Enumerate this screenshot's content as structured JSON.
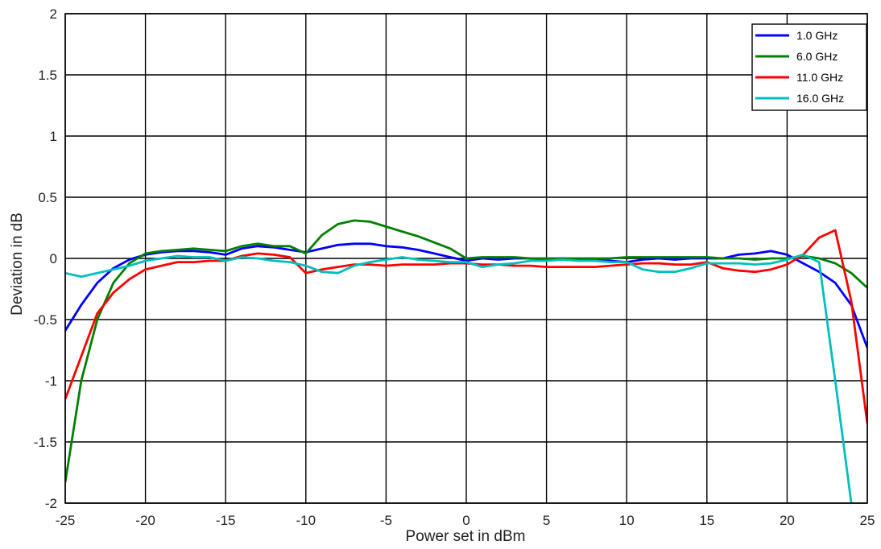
{
  "chart_data": {
    "type": "line",
    "title": "",
    "xlabel": "Power set in dBm",
    "ylabel": "Deviation  in dB",
    "xlim": [
      -25,
      25
    ],
    "ylim": [
      -2,
      2
    ],
    "xticks": [
      -25,
      -20,
      -15,
      -10,
      -5,
      0,
      5,
      10,
      15,
      20,
      25
    ],
    "yticks": [
      2,
      1.5,
      1,
      0.5,
      0,
      -0.5,
      -1,
      -1.5,
      -2
    ],
    "ytick_labels": [
      "2",
      "1.5",
      "1",
      "0.5",
      "0",
      "-0.5",
      "-1",
      "-1.5",
      "-2"
    ],
    "grid": true,
    "legend_position": "top-right",
    "series": [
      {
        "name": "1.0 GHz",
        "color": "#0000ff",
        "x": [
          -25,
          -24,
          -23,
          -22,
          -21,
          -20,
          -19,
          -18,
          -17,
          -16,
          -15,
          -14,
          -13,
          -12,
          -11,
          -10,
          -9,
          -8,
          -7,
          -6,
          -5,
          -4,
          -3,
          -2,
          -1,
          0,
          1,
          2,
          3,
          4,
          5,
          6,
          7,
          8,
          9,
          10,
          11,
          12,
          13,
          14,
          15,
          16,
          17,
          18,
          19,
          20,
          21,
          22,
          23,
          24,
          25
        ],
        "y": [
          -0.59,
          -0.38,
          -0.2,
          -0.08,
          -0.01,
          0.03,
          0.05,
          0.06,
          0.06,
          0.05,
          0.03,
          0.08,
          0.1,
          0.09,
          0.07,
          0.05,
          0.08,
          0.11,
          0.12,
          0.12,
          0.1,
          0.09,
          0.07,
          0.04,
          0.01,
          -0.02,
          0.0,
          -0.01,
          0.0,
          0.0,
          -0.01,
          0.0,
          -0.01,
          -0.01,
          -0.02,
          -0.03,
          -0.01,
          0.0,
          -0.01,
          0.0,
          0.0,
          0.0,
          0.03,
          0.04,
          0.06,
          0.03,
          -0.04,
          -0.11,
          -0.2,
          -0.38,
          -0.73
        ]
      },
      {
        "name": "6.0 GHz",
        "color": "#008000",
        "x": [
          -25,
          -24,
          -23,
          -22,
          -21,
          -20,
          -19,
          -18,
          -17,
          -16,
          -15,
          -14,
          -13,
          -12,
          -11,
          -10,
          -9,
          -8,
          -7,
          -6,
          -5,
          -4,
          -3,
          -2,
          -1,
          0,
          1,
          2,
          3,
          4,
          5,
          6,
          7,
          8,
          9,
          10,
          11,
          12,
          13,
          14,
          15,
          16,
          17,
          18,
          19,
          20,
          21,
          22,
          23,
          24,
          25
        ],
        "y": [
          -1.83,
          -1.0,
          -0.5,
          -0.2,
          -0.04,
          0.04,
          0.06,
          0.07,
          0.08,
          0.07,
          0.06,
          0.1,
          0.12,
          0.1,
          0.1,
          0.04,
          0.19,
          0.28,
          0.31,
          0.3,
          0.26,
          0.22,
          0.18,
          0.13,
          0.08,
          0.0,
          0.01,
          0.01,
          0.01,
          0.0,
          0.0,
          0.0,
          0.0,
          0.0,
          0.0,
          0.01,
          0.01,
          0.01,
          0.01,
          0.01,
          0.01,
          0.0,
          0.0,
          -0.01,
          0.0,
          0.0,
          0.02,
          0.0,
          -0.04,
          -0.12,
          -0.24
        ]
      },
      {
        "name": "11.0 GHz",
        "color": "#ff0000",
        "x": [
          -25,
          -24,
          -23,
          -22,
          -21,
          -20,
          -19,
          -18,
          -17,
          -16,
          -15,
          -14,
          -13,
          -12,
          -11,
          -10,
          -9,
          -8,
          -7,
          -6,
          -5,
          -4,
          -3,
          -2,
          -1,
          0,
          1,
          2,
          3,
          4,
          5,
          6,
          7,
          8,
          9,
          10,
          11,
          12,
          13,
          14,
          15,
          16,
          17,
          18,
          19,
          20,
          21,
          22,
          23,
          24,
          25
        ],
        "y": [
          -1.15,
          -0.8,
          -0.45,
          -0.28,
          -0.17,
          -0.09,
          -0.06,
          -0.03,
          -0.03,
          -0.02,
          -0.02,
          0.02,
          0.04,
          0.03,
          0.01,
          -0.12,
          -0.09,
          -0.07,
          -0.05,
          -0.05,
          -0.06,
          -0.05,
          -0.05,
          -0.05,
          -0.04,
          -0.04,
          -0.05,
          -0.05,
          -0.06,
          -0.06,
          -0.07,
          -0.07,
          -0.07,
          -0.07,
          -0.06,
          -0.05,
          -0.04,
          -0.04,
          -0.05,
          -0.05,
          -0.03,
          -0.08,
          -0.1,
          -0.11,
          -0.09,
          -0.05,
          0.03,
          0.17,
          0.23,
          -0.35,
          -1.35
        ]
      },
      {
        "name": "16.0 GHz",
        "color": "#00bfbf",
        "x": [
          -25,
          -24,
          -23,
          -22,
          -21,
          -20,
          -19,
          -18,
          -17,
          -16,
          -15,
          -14,
          -13,
          -12,
          -11,
          -10,
          -9,
          -8,
          -7,
          -6,
          -5,
          -4,
          -3,
          -2,
          -1,
          0,
          1,
          2,
          3,
          4,
          5,
          6,
          7,
          8,
          9,
          10,
          11,
          12,
          13,
          14,
          15,
          16,
          17,
          18,
          19,
          20,
          21,
          22,
          23,
          24,
          25
        ],
        "y": [
          -0.12,
          -0.15,
          -0.12,
          -0.09,
          -0.06,
          -0.02,
          0.0,
          0.02,
          0.01,
          0.01,
          -0.02,
          0.01,
          0.0,
          -0.02,
          -0.03,
          -0.06,
          -0.11,
          -0.12,
          -0.06,
          -0.03,
          -0.01,
          0.01,
          -0.01,
          -0.02,
          -0.03,
          -0.03,
          -0.07,
          -0.05,
          -0.04,
          -0.02,
          -0.02,
          -0.01,
          -0.02,
          -0.02,
          -0.03,
          -0.03,
          -0.09,
          -0.11,
          -0.11,
          -0.08,
          -0.04,
          -0.04,
          -0.04,
          -0.05,
          -0.04,
          -0.01,
          0.03,
          -0.03,
          -1.0,
          -2.0,
          null
        ]
      }
    ]
  }
}
